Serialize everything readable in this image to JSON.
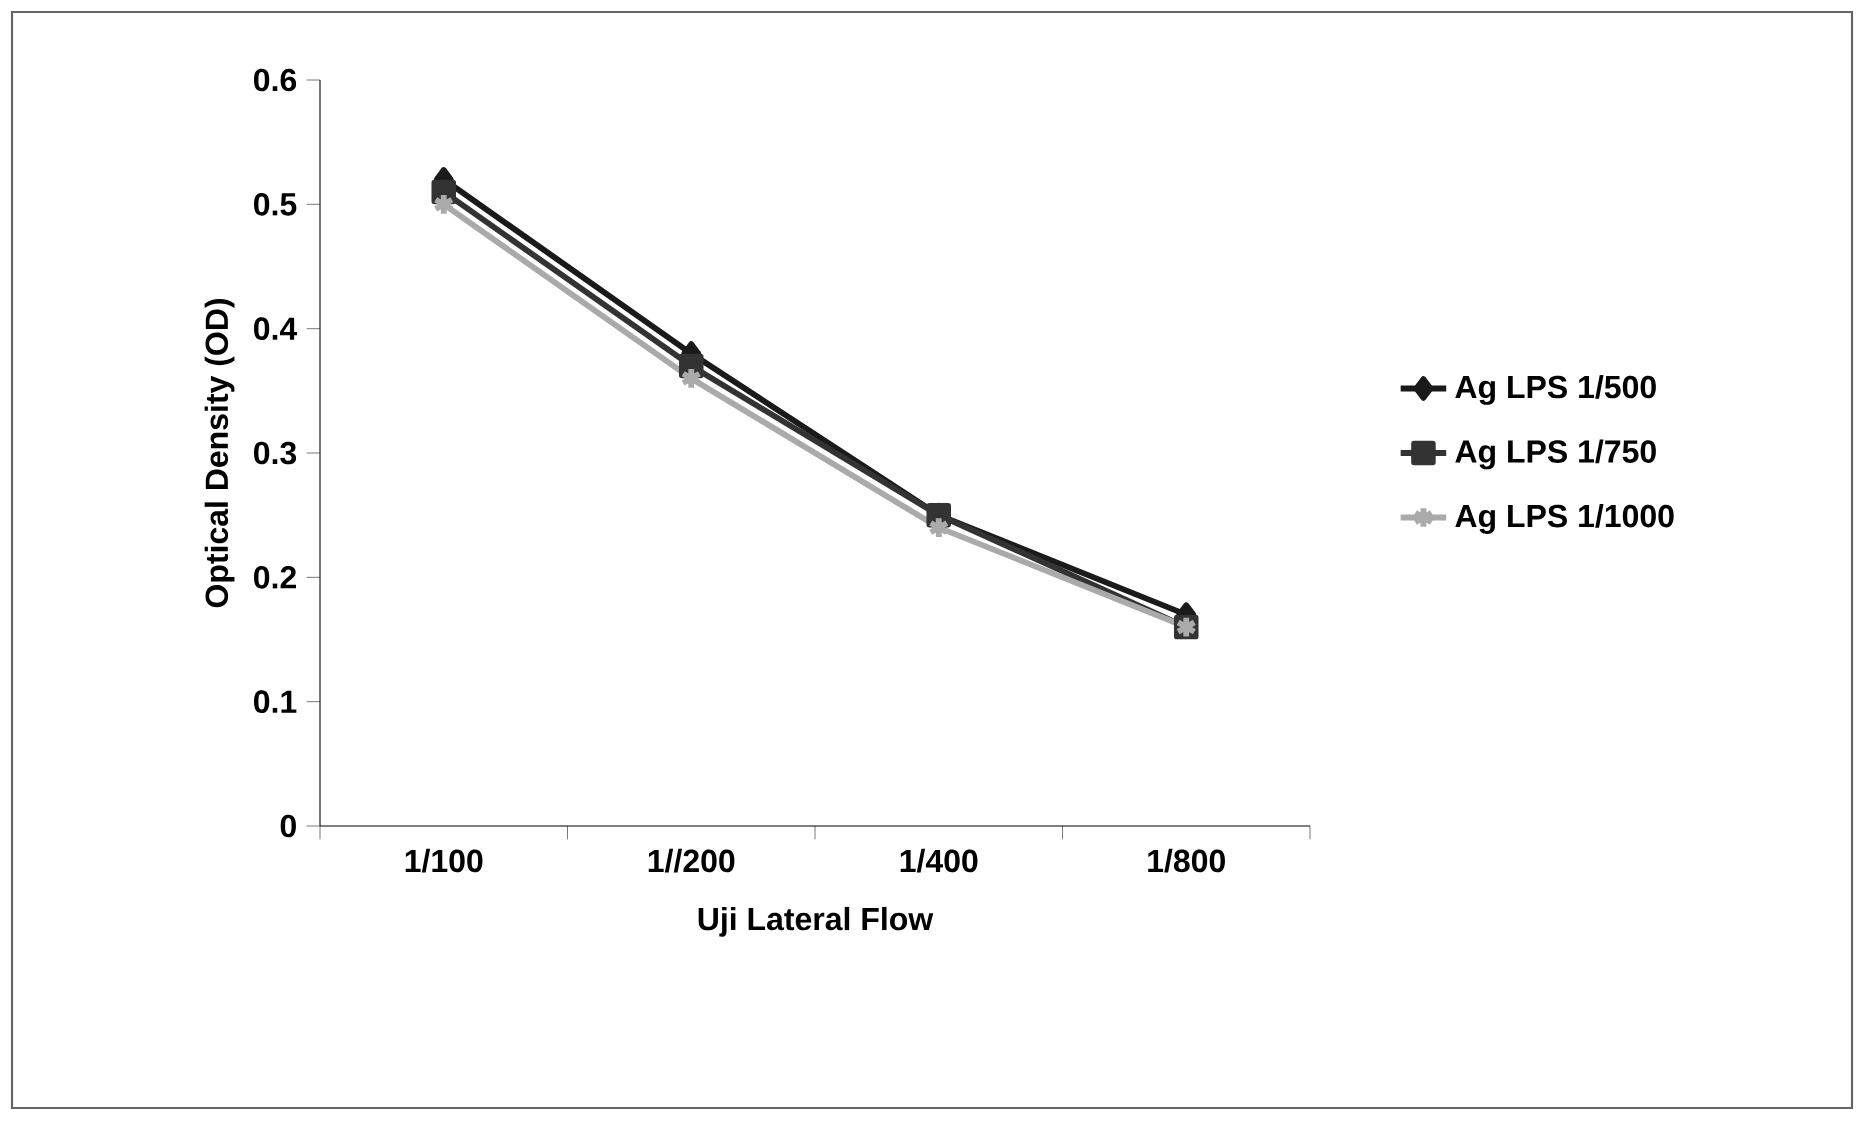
{
  "chart_data": {
    "type": "line",
    "xlabel": "Uji Lateral Flow",
    "ylabel": "Optical Density (OD)",
    "categories": [
      "1/100",
      "1//200",
      "1/400",
      "1/800"
    ],
    "series": [
      {
        "name": "Ag LPS 1/500",
        "color": "#1a1a1a",
        "marker": "diamond",
        "values": [
          0.52,
          0.38,
          0.25,
          0.17
        ]
      },
      {
        "name": "Ag LPS 1/750",
        "color": "#333333",
        "marker": "square",
        "values": [
          0.51,
          0.37,
          0.25,
          0.16
        ]
      },
      {
        "name": "Ag LPS 1/1000",
        "color": "#aaaaaa",
        "marker": "cross",
        "values": [
          0.5,
          0.36,
          0.24,
          0.16
        ]
      }
    ],
    "ylim": [
      0,
      0.6
    ],
    "yticks": [
      {
        "value": 0,
        "label": "0"
      },
      0.1,
      0.2,
      0.3,
      0.4,
      0.5,
      0.6
    ],
    "legend": "right",
    "grid": false,
    "line_style": "solid"
  }
}
